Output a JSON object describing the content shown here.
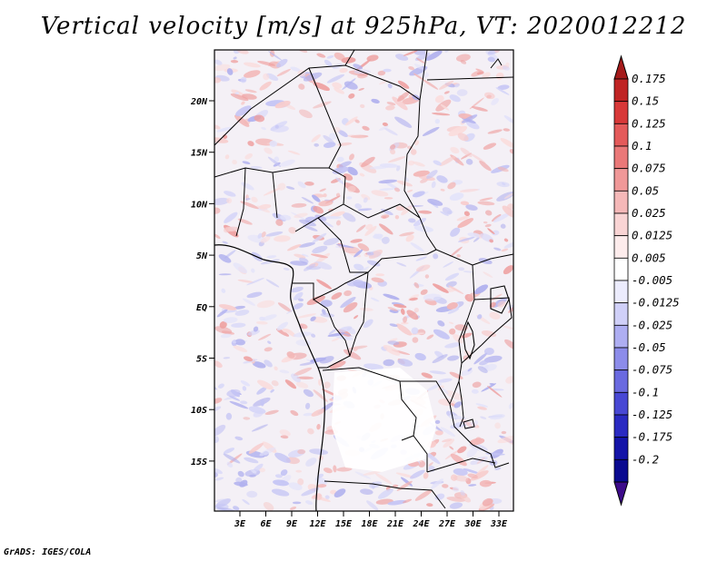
{
  "title": "Vertical velocity [m/s] at 925hPa, VT: 2020012212",
  "footer": "GrADS: IGES/COLA",
  "map": {
    "lat_labels": [
      "20N",
      "15N",
      "10N",
      "5N",
      "EQ",
      "5S",
      "10S",
      "15S"
    ],
    "lon_labels": [
      "3E",
      "6E",
      "9E",
      "12E",
      "15E",
      "18E",
      "21E",
      "24E",
      "27E",
      "30E",
      "33E"
    ]
  },
  "colorbar": {
    "labels": [
      "0.175",
      "0.15",
      "0.125",
      "0.1",
      "0.075",
      "0.05",
      "0.025",
      "0.0125",
      "0.005",
      "-0.005",
      "-0.0125",
      "-0.025",
      "-0.05",
      "-0.075",
      "-0.1",
      "-0.125",
      "-0.175",
      "-0.2"
    ],
    "colors": [
      "#a51b1b",
      "#c02424",
      "#d83838",
      "#e45a5a",
      "#ea7878",
      "#f09898",
      "#f5b8b8",
      "#f9d4d4",
      "#fdecec",
      "#ffffff",
      "#ececfd",
      "#d0d0f8",
      "#aeaef2",
      "#8c8cea",
      "#6a6ae0",
      "#4848d4",
      "#2a2ac2",
      "#1414a8",
      "#0a0a90",
      "#3d0b8a"
    ]
  }
}
